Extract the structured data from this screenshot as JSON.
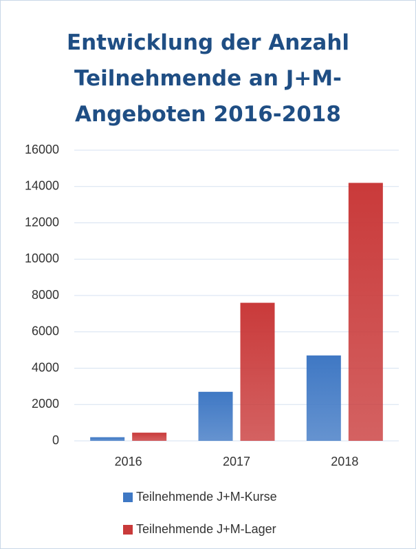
{
  "chart_data": {
    "type": "bar",
    "title": "Entwicklung der Anzahl Teilnehmende an J+M-Angeboten 2016-2018",
    "categories": [
      "2016",
      "2017",
      "2018"
    ],
    "series": [
      {
        "name": "Teilnehmende J+M-Kurse",
        "color": "#3f78c4",
        "values": [
          200,
          2700,
          4700
        ]
      },
      {
        "name": "Teilnehmende J+M-Lager",
        "color": "#c93a3a",
        "values": [
          450,
          7600,
          14200
        ]
      }
    ],
    "ylim": [
      0,
      16000
    ],
    "yticks": [
      0,
      2000,
      4000,
      6000,
      8000,
      10000,
      12000,
      14000,
      16000
    ],
    "grid": true,
    "legend": "bottom"
  }
}
